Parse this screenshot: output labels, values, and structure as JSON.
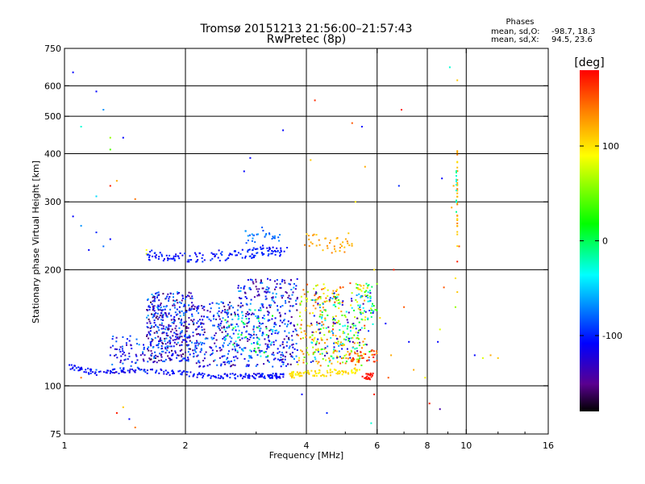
{
  "chart_data": {
    "type": "scatter",
    "title": "Tromsø 20151213 21:56:00–21:57:43",
    "subtitle": "RwPretec (8p)",
    "xlabel": "Frequency [MHz]",
    "ylabel": "Stationary phase Virtual Height [km]",
    "xscale": "log",
    "yscale": "log",
    "xlim": [
      1,
      16
    ],
    "ylim": [
      75,
      750
    ],
    "x_ticks": [
      "1",
      "2",
      "4",
      "6",
      "8",
      "10",
      "16"
    ],
    "y_ticks": [
      "75",
      "100",
      "200",
      "300",
      "400",
      "500",
      "600",
      "750"
    ],
    "x_gridlines": [
      2,
      4,
      6,
      8,
      10
    ],
    "y_gridlines": [
      100,
      200,
      300,
      400,
      500,
      600
    ],
    "grid": true,
    "colorbar": {
      "label": "[deg]",
      "range": [
        -180,
        180
      ],
      "ticks": [
        "100",
        "0",
        "-100"
      ],
      "tick_values": [
        100,
        0,
        -100
      ],
      "colormap": "rainbow (black-purple-blue-cyan-green-yellow-orange-red)"
    },
    "phase_stats": {
      "title": "Phases",
      "o_label": "mean, sd,O:",
      "o_values": "-98.7, 18.3",
      "x_label": "mean, sd,X:",
      "x_values": "94.5, 23.6"
    },
    "series": [
      {
        "traces": [
          {
            "x": [
              1.03,
              1.2,
              1.5,
              1.9,
              2.3,
              2.8,
              3.2,
              3.5
            ],
            "y": [
              112,
              108,
              110,
              108,
              106,
              106,
              106,
              106
            ],
            "phase": -110,
            "n": 220,
            "spread_x": 0.02,
            "spread_y": 0.015
          },
          {
            "x": [
              3.6,
              3.8,
              4.1,
              4.5,
              5.0,
              5.4
            ],
            "y": [
              106,
              107,
              108,
              108,
              109,
              110
            ],
            "phase": 100,
            "n": 90,
            "spread_x": 0.02,
            "spread_y": 0.02
          },
          {
            "x": [
              5.6,
              5.8
            ],
            "y": [
              106,
              106
            ],
            "phase": 175,
            "n": 25,
            "spread_x": 0.015,
            "spread_y": 0.02
          },
          {
            "x": [
              1.6,
              1.65
            ],
            "y": [
              220,
              220
            ],
            "phase": 80,
            "n": 1,
            "spread_x": 0,
            "spread_y": 0
          },
          {
            "x": [
              1.6,
              1.8,
              2.1,
              2.5,
              2.9,
              3.2,
              3.5
            ],
            "y": [
              218,
              215,
              215,
              218,
              220,
              225,
              222
            ],
            "phase": -105,
            "n": 150,
            "spread_x": 0.03,
            "spread_y": 0.03
          },
          {
            "x": [
              2.8,
              3.1,
              3.4
            ],
            "y": [
              240,
              250,
              245
            ],
            "phase": -80,
            "n": 30,
            "spread_x": 0.04,
            "spread_y": 0.04
          },
          {
            "x": [
              4.0,
              4.4,
              4.8,
              5.1
            ],
            "y": [
              240,
              235,
              230,
              240
            ],
            "phase": 120,
            "n": 40,
            "spread_x": 0.05,
            "spread_y": 0.05
          }
        ]
      },
      {
        "clouds": [
          {
            "x0": 1.6,
            "x1": 2.1,
            "y0": 115,
            "y1": 175,
            "n": 420,
            "phase": -115,
            "jitter": 50
          },
          {
            "x0": 2.1,
            "x1": 2.7,
            "y0": 112,
            "y1": 165,
            "n": 230,
            "phase": -110,
            "jitter": 50
          },
          {
            "x0": 2.7,
            "x1": 3.8,
            "y0": 112,
            "y1": 190,
            "n": 360,
            "phase": -110,
            "jitter": 50
          },
          {
            "x0": 1.3,
            "x1": 1.6,
            "y0": 108,
            "y1": 135,
            "n": 70,
            "phase": -105,
            "jitter": 40
          },
          {
            "x0": 2.5,
            "x1": 3.3,
            "y0": 118,
            "y1": 160,
            "n": 60,
            "phase": -20,
            "jitter": 40
          },
          {
            "x0": 3.8,
            "x1": 5.6,
            "y0": 112,
            "y1": 185,
            "n": 260,
            "phase": 100,
            "jitter": 60
          },
          {
            "x0": 4.1,
            "x1": 5.9,
            "y0": 115,
            "y1": 175,
            "n": 150,
            "phase": -60,
            "jitter": 90
          },
          {
            "x0": 5.0,
            "x1": 6.0,
            "y0": 115,
            "y1": 125,
            "n": 45,
            "phase": 150,
            "jitter": 30
          },
          {
            "x0": 5.3,
            "x1": 6.0,
            "y0": 150,
            "y1": 185,
            "n": 40,
            "phase": 20,
            "jitter": 100
          }
        ]
      },
      {
        "points": [
          [
            1.05,
            650,
            -110
          ],
          [
            1.1,
            470,
            -30
          ],
          [
            1.2,
            580,
            -110
          ],
          [
            1.25,
            520,
            -70
          ],
          [
            1.3,
            440,
            60
          ],
          [
            1.3,
            410,
            40
          ],
          [
            1.3,
            330,
            170
          ],
          [
            1.2,
            310,
            -50
          ],
          [
            1.4,
            440,
            -110
          ],
          [
            1.35,
            340,
            120
          ],
          [
            1.5,
            305,
            140
          ],
          [
            1.05,
            275,
            -110
          ],
          [
            1.1,
            260,
            -70
          ],
          [
            1.2,
            250,
            -100
          ],
          [
            1.3,
            240,
            -110
          ],
          [
            1.15,
            225,
            -110
          ],
          [
            1.25,
            230,
            -80
          ],
          [
            1.6,
            225,
            90
          ],
          [
            1.3,
            120,
            -105
          ],
          [
            1.2,
            110,
            -80
          ],
          [
            1.1,
            105,
            140
          ],
          [
            1.4,
            88,
            110
          ],
          [
            1.35,
            85,
            170
          ],
          [
            1.45,
            82,
            -110
          ],
          [
            1.5,
            78,
            140
          ],
          [
            2.8,
            360,
            -110
          ],
          [
            2.9,
            390,
            -110
          ],
          [
            3.5,
            460,
            -110
          ],
          [
            4.2,
            550,
            165
          ],
          [
            4.1,
            385,
            110
          ],
          [
            5.2,
            480,
            150
          ],
          [
            5.5,
            470,
            -110
          ],
          [
            5.6,
            370,
            120
          ],
          [
            5.3,
            300,
            100
          ],
          [
            6.8,
            330,
            -100
          ],
          [
            6.9,
            520,
            175
          ],
          [
            6.6,
            200,
            170
          ],
          [
            7.0,
            160,
            150
          ],
          [
            7.2,
            130,
            -110
          ],
          [
            7.4,
            110,
            120
          ],
          [
            7.9,
            105,
            90
          ],
          [
            8.1,
            90,
            170
          ],
          [
            8.6,
            87,
            -140
          ],
          [
            8.5,
            130,
            -110
          ],
          [
            8.6,
            140,
            80
          ],
          [
            8.8,
            180,
            150
          ],
          [
            9.1,
            670,
            -30
          ],
          [
            9.5,
            620,
            110
          ],
          [
            8.7,
            345,
            -110
          ],
          [
            9.3,
            330,
            120
          ],
          [
            9.2,
            290,
            120
          ],
          [
            9.6,
            230,
            150
          ],
          [
            9.5,
            210,
            170
          ],
          [
            9.4,
            190,
            100
          ],
          [
            9.5,
            175,
            110
          ],
          [
            9.4,
            160,
            60
          ],
          [
            10.5,
            120,
            -110
          ],
          [
            11.0,
            118,
            80
          ],
          [
            11.5,
            120,
            120
          ],
          [
            12.0,
            118,
            110
          ],
          [
            6.1,
            150,
            100
          ],
          [
            6.3,
            145,
            -110
          ],
          [
            6.5,
            120,
            120
          ],
          [
            6.4,
            105,
            150
          ],
          [
            4.5,
            85,
            -100
          ],
          [
            3.9,
            95,
            -110
          ],
          [
            5.8,
            80,
            -30
          ],
          [
            5.9,
            95,
            170
          ],
          [
            4.3,
            140,
            -110
          ],
          [
            5.9,
            200,
            100
          ]
        ]
      },
      {
        "vertical_columns": [
          {
            "x": 9.5,
            "y0": 230,
            "y1": 410,
            "phase": 120,
            "n": 30
          },
          {
            "x": 9.45,
            "y0": 280,
            "y1": 380,
            "phase": -30,
            "n": 10
          }
        ]
      }
    ]
  }
}
